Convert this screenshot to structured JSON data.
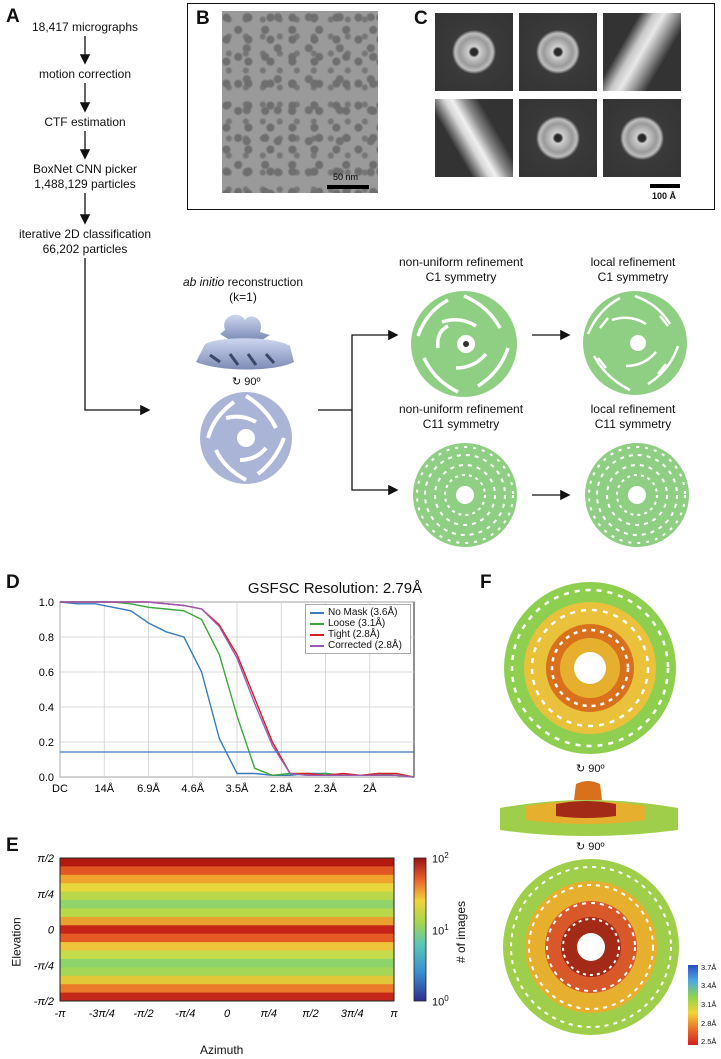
{
  "panels": {
    "A": "A",
    "B": "B",
    "C": "C",
    "D": "D",
    "E": "E",
    "F": "F"
  },
  "workflow": {
    "step1": "18,417 micrographs",
    "step2": "motion correction",
    "step3": "CTF estimation",
    "step4a": "BoxNet CNN picker",
    "step4b": "1,488,129 particles",
    "step5a": "iterative 2D classification",
    "step5b": "66,202 particles",
    "abinitio_italic": "ab initio",
    "abinitio_rest": " reconstruction",
    "abinitio_k": "(k=1)",
    "rot90": "90º",
    "nu_c1_a": "non-uniform refinement",
    "nu_c1_b": "C1 symmetry",
    "local_c1_a": "local refinement",
    "local_c1_b": "C1 symmetry",
    "nu_c11_a": "non-uniform refinement",
    "nu_c11_b": "C11 symmetry",
    "local_c11_a": "local refinement",
    "local_c11_b": "C11 symmetry"
  },
  "micrograph": {
    "scalebar": "50 nm"
  },
  "classes": {
    "scalebar": "100 Å"
  },
  "fsc": {
    "title": "GSFSC Resolution: 2.79Å",
    "legend": [
      "No Mask (3.6Å)",
      "Loose (3.1Å)",
      "Tight (2.8Å)",
      "Corrected (2.8Å)"
    ],
    "colors": [
      "#3a7bbf",
      "#3aa83a",
      "#d62020",
      "#9b5bb5"
    ],
    "yticks": [
      "1.0",
      "0.8",
      "0.6",
      "0.4",
      "0.2",
      "0.0"
    ],
    "xticks": [
      "DC",
      "14Å",
      "6.9Å",
      "4.6Å",
      "3.5Å",
      "2.8Å",
      "2.3Å",
      "2Å"
    ],
    "threshold": 0.143
  },
  "chart_data": {
    "type": "line",
    "title": "GSFSC Resolution: 2.79Å",
    "xlabel": "",
    "ylabel": "",
    "ylim": [
      0,
      1
    ],
    "x": [
      0,
      0.05,
      0.1,
      0.15,
      0.2,
      0.25,
      0.3,
      0.35,
      0.4,
      0.45,
      0.5,
      0.55,
      0.6,
      0.65,
      0.7,
      0.75,
      0.8,
      0.85,
      0.9,
      0.95,
      1.0
    ],
    "series": [
      {
        "name": "No Mask (3.6Å)",
        "values": [
          1.0,
          0.99,
          0.99,
          0.97,
          0.95,
          0.88,
          0.83,
          0.8,
          0.6,
          0.22,
          0.02,
          0.02,
          0.01,
          0.01,
          0.02,
          0.02,
          0.01,
          0.01,
          0.01,
          0.01,
          0.0
        ]
      },
      {
        "name": "Loose (3.1Å)",
        "values": [
          1.0,
          1.0,
          1.0,
          1.0,
          0.99,
          0.97,
          0.96,
          0.95,
          0.9,
          0.7,
          0.35,
          0.05,
          0.01,
          0.02,
          0.01,
          0.02,
          0.01,
          0.01,
          0.02,
          0.01,
          0.0
        ]
      },
      {
        "name": "Tight (2.8Å)",
        "values": [
          1.0,
          1.0,
          1.0,
          1.0,
          1.0,
          1.0,
          0.99,
          0.98,
          0.96,
          0.87,
          0.7,
          0.45,
          0.2,
          0.02,
          0.02,
          0.01,
          0.02,
          0.01,
          0.02,
          0.02,
          0.0
        ]
      },
      {
        "name": "Corrected (2.8Å)",
        "values": [
          1.0,
          1.0,
          1.0,
          1.0,
          1.0,
          1.0,
          0.99,
          0.98,
          0.96,
          0.86,
          0.68,
          0.42,
          0.18,
          0.02,
          0.01,
          0.01,
          0.01,
          0.01,
          0.01,
          0.01,
          0.0
        ]
      }
    ]
  },
  "orientation": {
    "xlabel": "Azimuth",
    "ylabel": "Elevation",
    "xticks": [
      "-π",
      "-3π/4",
      "-π/2",
      "-π/4",
      "0",
      "π/4",
      "π/2",
      "3π/4",
      "π"
    ],
    "yticks": [
      "π/2",
      "π/4",
      "0",
      "-π/4",
      "-π/2"
    ],
    "cbar_label": "# of images",
    "cbar_ticks": [
      "10",
      "10",
      "10"
    ],
    "cbar_exps": [
      "2",
      "1",
      "0"
    ]
  },
  "local_res": {
    "rot1": "90º",
    "rot2": "90º",
    "scale": [
      "3.7Å",
      "3.4Å",
      "3.1Å",
      "2.8Å",
      "2.5Å"
    ]
  }
}
